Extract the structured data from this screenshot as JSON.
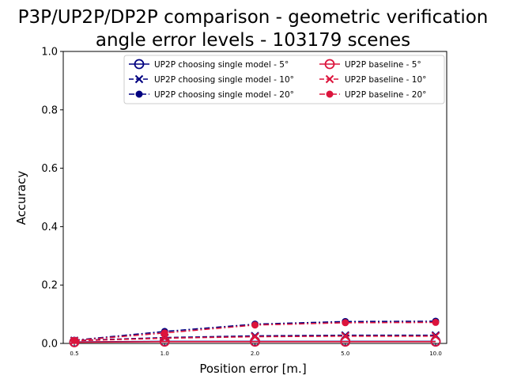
{
  "chart_data": {
    "type": "line",
    "title_line1": "P3P/UP2P/DP2P comparison - geometric verification",
    "title_line2": "angle error levels - 103179 scenes",
    "xlabel": "Position error [m.]",
    "ylabel": "Accuracy",
    "x": [
      0.5,
      1.0,
      2.0,
      5.0,
      10.0
    ],
    "xtick_labels": [
      "0.5",
      "1.0",
      "2.0",
      "5.0",
      "10.0"
    ],
    "ylim": [
      0,
      1
    ],
    "yticks": [
      "0.0",
      "0.2",
      "0.4",
      "0.6",
      "0.8",
      "1.0"
    ],
    "legend_position": "upper center",
    "series": [
      {
        "name": "UP2P choosing single model - 5°",
        "values": [
          0.005,
          0.007,
          0.007,
          0.007,
          0.007
        ],
        "color": "#000080",
        "linestyle": "solid",
        "marker": "circle-open"
      },
      {
        "name": "UP2P choosing single model - 10°",
        "values": [
          0.01,
          0.02,
          0.026,
          0.028,
          0.028
        ],
        "color": "#000080",
        "linestyle": "dashed",
        "marker": "x"
      },
      {
        "name": "UP2P choosing single model - 20°",
        "values": [
          0.011,
          0.041,
          0.066,
          0.075,
          0.076
        ],
        "color": "#000080",
        "linestyle": "dashdot",
        "marker": "dot"
      },
      {
        "name": "UP2P baseline - 5°",
        "values": [
          0.004,
          0.006,
          0.006,
          0.006,
          0.006
        ],
        "color": "#dc143c",
        "linestyle": "solid",
        "marker": "circle-open"
      },
      {
        "name": "UP2P baseline - 10°",
        "values": [
          0.009,
          0.018,
          0.023,
          0.025,
          0.025
        ],
        "color": "#dc143c",
        "linestyle": "dashed",
        "marker": "x"
      },
      {
        "name": "UP2P baseline - 20°",
        "values": [
          0.01,
          0.036,
          0.063,
          0.071,
          0.072
        ],
        "color": "#dc143c",
        "linestyle": "dashdot",
        "marker": "dot"
      }
    ]
  }
}
